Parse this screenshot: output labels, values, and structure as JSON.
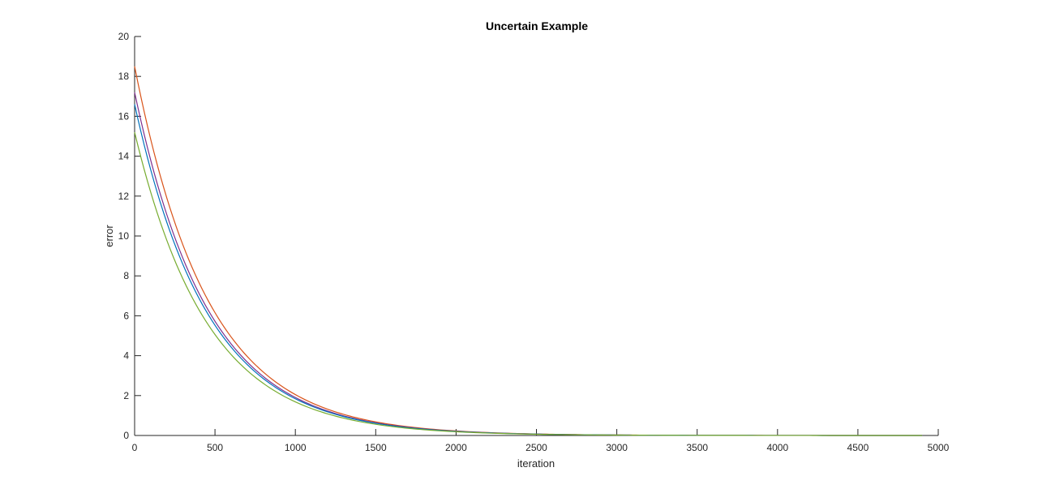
{
  "chart_data": {
    "type": "line",
    "title": "Uncertain Example",
    "xlabel": "iteration",
    "ylabel": "error",
    "xlim": [
      0,
      5000
    ],
    "ylim": [
      0,
      20
    ],
    "xticks": [
      0,
      500,
      1000,
      1500,
      2000,
      2500,
      3000,
      3500,
      4000,
      4500,
      5000
    ],
    "yticks": [
      0,
      2,
      4,
      6,
      8,
      10,
      12,
      14,
      16,
      18,
      20
    ],
    "grid": false,
    "x_end": 4900,
    "series": [
      {
        "start": 18.5,
        "decay_per_1000": 2.2,
        "color": "#D95319"
      },
      {
        "start": 17.2,
        "decay_per_1000": 2.2,
        "color": "#7E2F8E"
      },
      {
        "start": 16.6,
        "decay_per_1000": 2.2,
        "color": "#0072BD"
      },
      {
        "start": 15.2,
        "decay_per_1000": 2.2,
        "color": "#77AC30"
      }
    ]
  }
}
